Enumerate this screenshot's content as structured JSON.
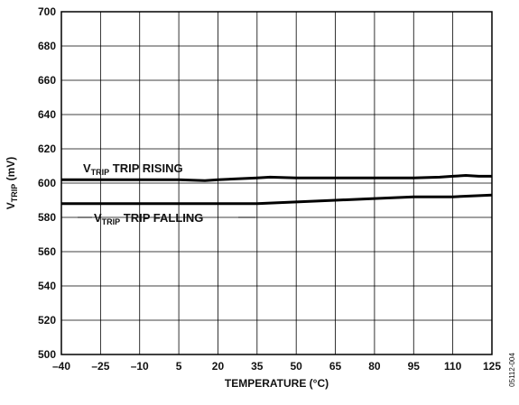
{
  "chart_data": {
    "type": "line",
    "title": "",
    "xlabel": "TEMPERATURE (°C)",
    "ylabel": {
      "prefix": "V",
      "sub": "TRIP",
      "suffix": " (mV)"
    },
    "xlim": [
      -40,
      125
    ],
    "ylim": [
      500,
      700
    ],
    "x_ticks": [
      "–40",
      "–25",
      "–10",
      "5",
      "20",
      "35",
      "50",
      "65",
      "80",
      "95",
      "110",
      "125"
    ],
    "x_tick_values": [
      -40,
      -25,
      -10,
      5,
      20,
      35,
      50,
      65,
      80,
      95,
      110,
      125
    ],
    "y_ticks": [
      "500",
      "520",
      "540",
      "560",
      "580",
      "600",
      "620",
      "640",
      "660",
      "680",
      "700"
    ],
    "y_tick_values": [
      500,
      520,
      540,
      560,
      580,
      600,
      620,
      640,
      660,
      680,
      700
    ],
    "grid": true,
    "series": [
      {
        "name": {
          "prefix": "V",
          "sub": "TRIP",
          "suffix": " TRIP RISING"
        },
        "x": [
          -40,
          -25,
          -10,
          5,
          15,
          20,
          35,
          40,
          50,
          65,
          80,
          95,
          105,
          110,
          115,
          120,
          125
        ],
        "y": [
          602,
          602,
          602,
          602,
          601.5,
          602,
          603,
          603.5,
          603,
          603,
          603,
          603,
          603.5,
          604,
          604.5,
          604,
          604
        ]
      },
      {
        "name": {
          "prefix": "V",
          "sub": "TRIP",
          "suffix": " TRIP FALLING"
        },
        "x": [
          -40,
          -25,
          -10,
          5,
          20,
          35,
          50,
          65,
          80,
          95,
          110,
          125
        ],
        "y": [
          588,
          588,
          588,
          588,
          588,
          588,
          589,
          590,
          591,
          592,
          592,
          593
        ]
      }
    ]
  },
  "figure_id": "05112-004"
}
